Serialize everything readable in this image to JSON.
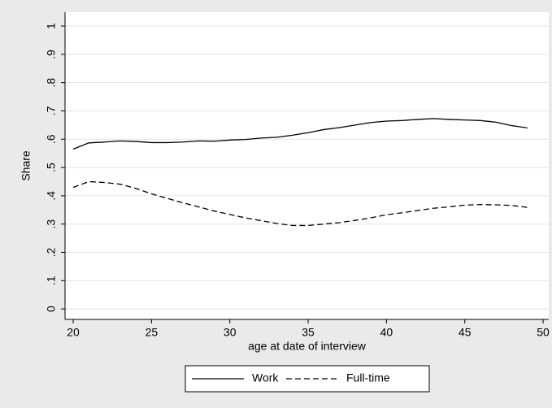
{
  "chart_data": {
    "type": "line",
    "x": [
      20,
      21,
      22,
      23,
      24,
      25,
      26,
      27,
      28,
      29,
      30,
      31,
      32,
      33,
      34,
      35,
      36,
      37,
      38,
      39,
      40,
      41,
      42,
      43,
      44,
      45,
      46,
      47,
      48,
      49
    ],
    "series": [
      {
        "name": "Work",
        "color": "#000000",
        "line_style": "solid",
        "values": [
          0.565,
          0.587,
          0.59,
          0.594,
          0.592,
          0.588,
          0.588,
          0.59,
          0.594,
          0.593,
          0.597,
          0.599,
          0.604,
          0.607,
          0.614,
          0.623,
          0.634,
          0.641,
          0.65,
          0.659,
          0.664,
          0.666,
          0.67,
          0.673,
          0.67,
          0.668,
          0.666,
          0.66,
          0.648,
          0.64
        ]
      },
      {
        "name": "Full-time",
        "color": "#000000",
        "line_style": "dashed",
        "values": [
          0.43,
          0.45,
          0.447,
          0.441,
          0.426,
          0.407,
          0.391,
          0.375,
          0.361,
          0.346,
          0.334,
          0.322,
          0.312,
          0.302,
          0.295,
          0.295,
          0.3,
          0.305,
          0.313,
          0.322,
          0.333,
          0.34,
          0.348,
          0.356,
          0.361,
          0.367,
          0.369,
          0.368,
          0.366,
          0.359
        ]
      }
    ],
    "x_label": "age at date of interview",
    "y_label": "Share",
    "xlim": [
      19.48,
      50.36
    ],
    "xticks": [
      20,
      25,
      30,
      35,
      40,
      45,
      50
    ],
    "ylim": [
      -0.037,
      1.049
    ],
    "yticks": [
      0,
      {
        "value": 0.1,
        "label": ".1"
      },
      {
        "value": 0.2,
        "label": ".2"
      },
      {
        "value": 0.3,
        "label": ".3"
      },
      {
        "value": 0.4,
        "label": ".4"
      },
      {
        "value": 0.5,
        "label": ".5"
      },
      {
        "value": 0.6,
        "label": ".6"
      },
      {
        "value": 0.7,
        "label": ".7"
      },
      {
        "value": 0.8,
        "label": ".8"
      },
      {
        "value": 0.9,
        "label": ".9"
      },
      1
    ],
    "grid": true,
    "legend": "bottom"
  }
}
